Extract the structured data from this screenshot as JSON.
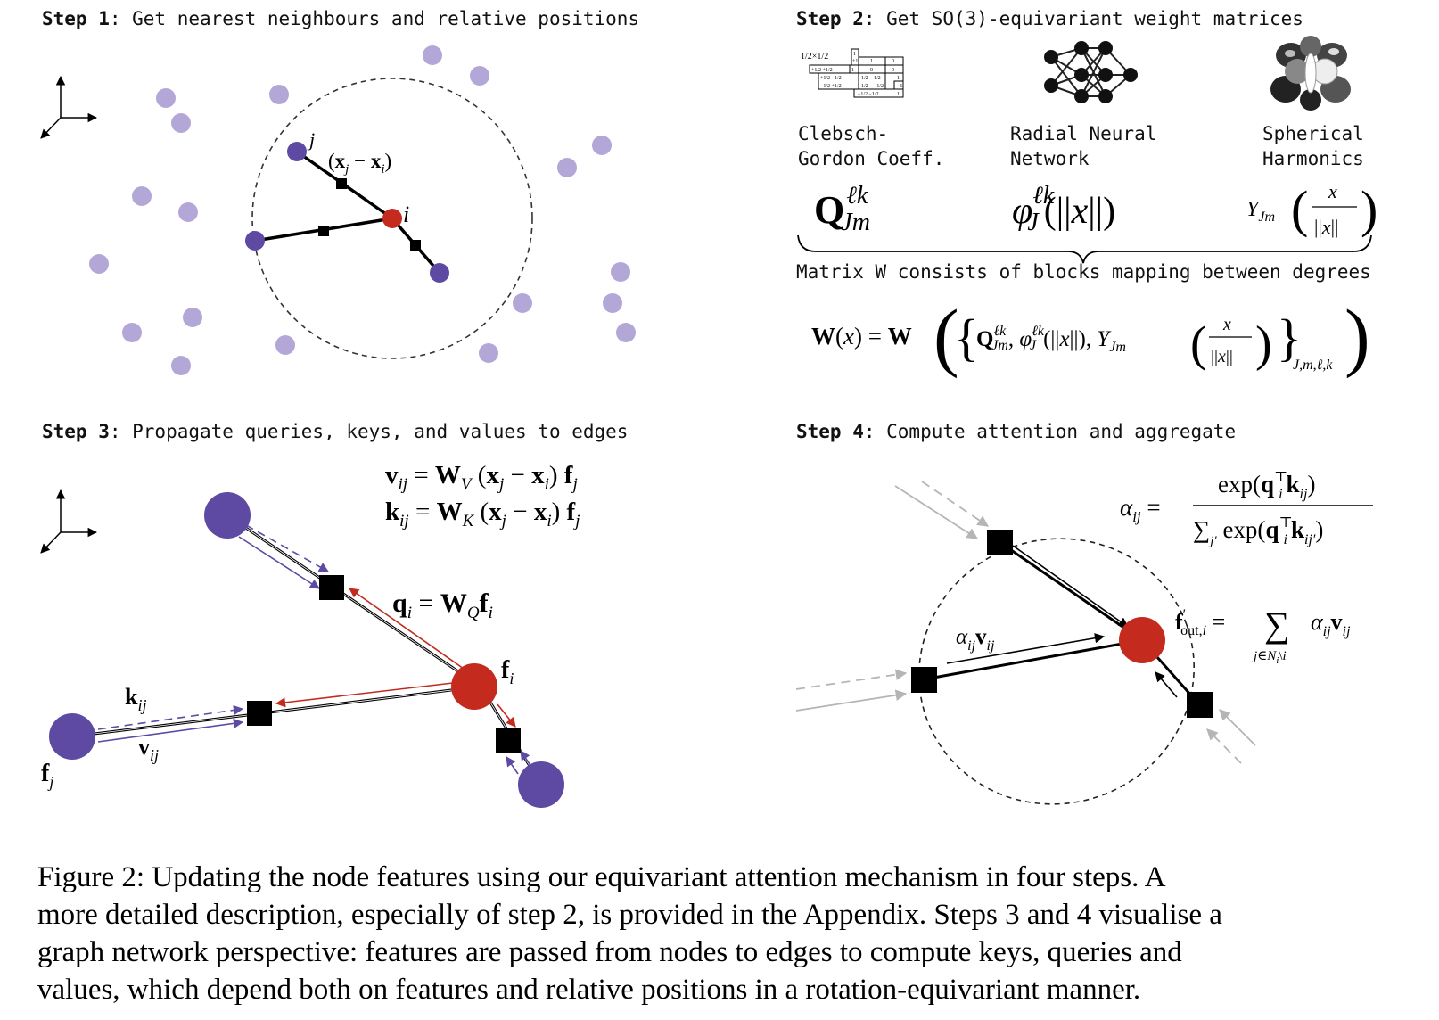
{
  "steps": [
    {
      "num": "Step 1",
      "text": ": Get nearest neighbours and relative positions"
    },
    {
      "num": "Step 2",
      "text": ": Get SO(3)-equivariant weight matrices"
    },
    {
      "num": "Step 3",
      "text": ": Propagate queries, keys, and values to edges"
    },
    {
      "num": "Step 4",
      "text": ": Compute attention and aggregate"
    }
  ],
  "step1": {
    "label_j": "j",
    "label_i": "i",
    "edge_label": "(xj − xi)"
  },
  "step2": {
    "components": [
      {
        "name": "Clebsch-\nGordon Coeff.",
        "symbol": "Qℓk Jm",
        "icon": "clebsch-gordan-table-icon"
      },
      {
        "name": "Radial Neural\nNetwork",
        "symbol": "φℓk J(||x||)",
        "icon": "neural-network-icon"
      },
      {
        "name": "Spherical\nHarmonics",
        "symbol": "YJm(x/||x||)",
        "icon": "spherical-harmonics-icon"
      }
    ],
    "brace_text": "Matrix W consists of blocks mapping between degrees",
    "cg_table": [
      "1/2×1/2",
      "1",
      "+1",
      "1",
      "0",
      "+1/2 +1/2",
      "1",
      "0",
      "0",
      "+1/2 −1/2",
      "1/2",
      "1/2",
      "1",
      "−1/2 +1/2",
      "1/2",
      "−1/2",
      "−1",
      "−1/2 −1/2",
      "1"
    ],
    "w_equation": "W(x) = W({Qℓk Jm, φℓk J(||x||), YJm(x/||x||)} J,m,ℓ,k)"
  },
  "step3": {
    "v_eq": "vij = WV (xj − xi) fj",
    "k_eq": "kij = WK (xj − xi) fj",
    "q_eq": "qi = WQ fi",
    "fi": "fi",
    "fj": "fj",
    "kij": "kij",
    "vij": "vij"
  },
  "step4": {
    "alpha_eq": "αij = exp(qiᵀ kij) / Σj′ exp(qiᵀ kij′)",
    "alpha_v": "αij vij",
    "fout_eq": "f′out,i = Σ j∈Ni\\i αij vij"
  },
  "caption": [
    "Figure 2: Updating the node features using our equivariant attention mechanism in four steps. A",
    "more detailed description, especially of step 2, is provided in the Appendix. Steps 3 and 4 visualise a",
    "graph network perspective: features are passed from nodes to edges to compute keys, queries and",
    "values, which depend both on features and relative positions in a rotation-equivariant manner."
  ],
  "colors": {
    "light_purple": "#b3a7d8",
    "dark_purple": "#5e4aa3",
    "red": "#c42a1e",
    "black": "#000000",
    "gray_arrow": "#b5b5b5"
  }
}
